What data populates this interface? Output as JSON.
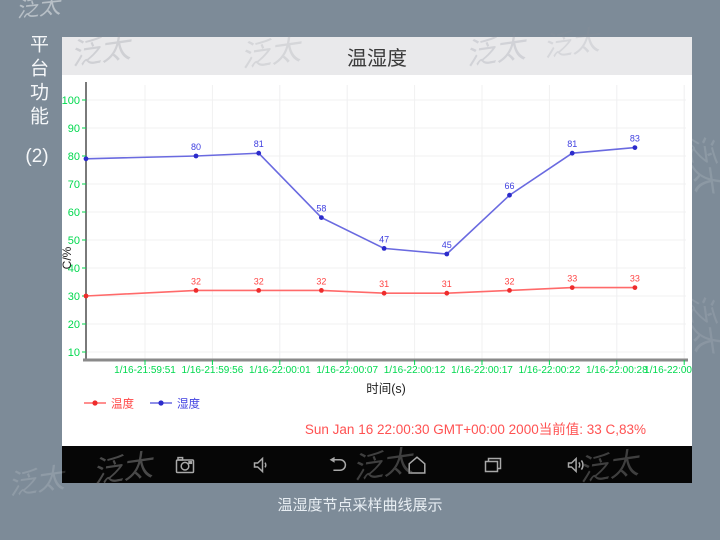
{
  "sidebar": {
    "line1": "平台功能",
    "line2": "(2)"
  },
  "header": {
    "title": "温湿度"
  },
  "chart_data": {
    "type": "line",
    "title": "温湿度",
    "xlabel": "时间(s)",
    "ylabel": "C/%",
    "ylim": [
      0,
      100
    ],
    "grid": true,
    "legend_position": "bottom-left",
    "yticks": [
      10,
      20,
      30,
      40,
      50,
      60,
      70,
      80,
      90,
      100
    ],
    "x_tick_labels": [
      "1/16-21:59:51",
      "1/16-21:59:56",
      "1/16-22:00:01",
      "1/16-22:00:07",
      "1/16-22:00:12",
      "1/16-22:00:17",
      "1/16-22:00:22",
      "1/16-22:00:28",
      "1/16-22:00"
    ],
    "series": [
      {
        "name": "温度",
        "key": "temperature",
        "line_color": "#ff6a6a",
        "marker_color": "#ee2c2c",
        "label_color": "#ff4545",
        "values": [
          30,
          32,
          32,
          32,
          31,
          31,
          32,
          33,
          33
        ],
        "point_labels": [
          "",
          "32",
          "32",
          "32",
          "31",
          "31",
          "32",
          "33",
          "33"
        ]
      },
      {
        "name": "湿度",
        "key": "humidity",
        "line_color": "#6a6ae0",
        "marker_color": "#2b2bcb",
        "label_color": "#4040e0",
        "values": [
          79,
          80,
          81,
          58,
          47,
          45,
          66,
          81,
          83
        ],
        "point_labels": [
          "",
          "80",
          "81",
          "58",
          "47",
          "45",
          "66",
          "81",
          "83"
        ]
      }
    ],
    "tick_color": "#00d94e",
    "axis_color": "#8a8a8a",
    "grid_color": "#f0f0f1"
  },
  "status": {
    "text": "Sun Jan 16 22:00:30 GMT+00:00 2000当前值: 33 C,83%"
  },
  "nav": {
    "icons": [
      "camera-icon",
      "volume-down-icon",
      "back-icon",
      "home-icon",
      "recents-icon",
      "volume-up-icon"
    ]
  },
  "caption": {
    "text": "温湿度节点采样曲线展示"
  },
  "watermark": {
    "glyph": "泛太"
  },
  "colors": {
    "background": "#7d8b98",
    "appbar": "#e9e9eb",
    "status_text": "#ff5252",
    "nav_icon": "#a8a8a8"
  }
}
